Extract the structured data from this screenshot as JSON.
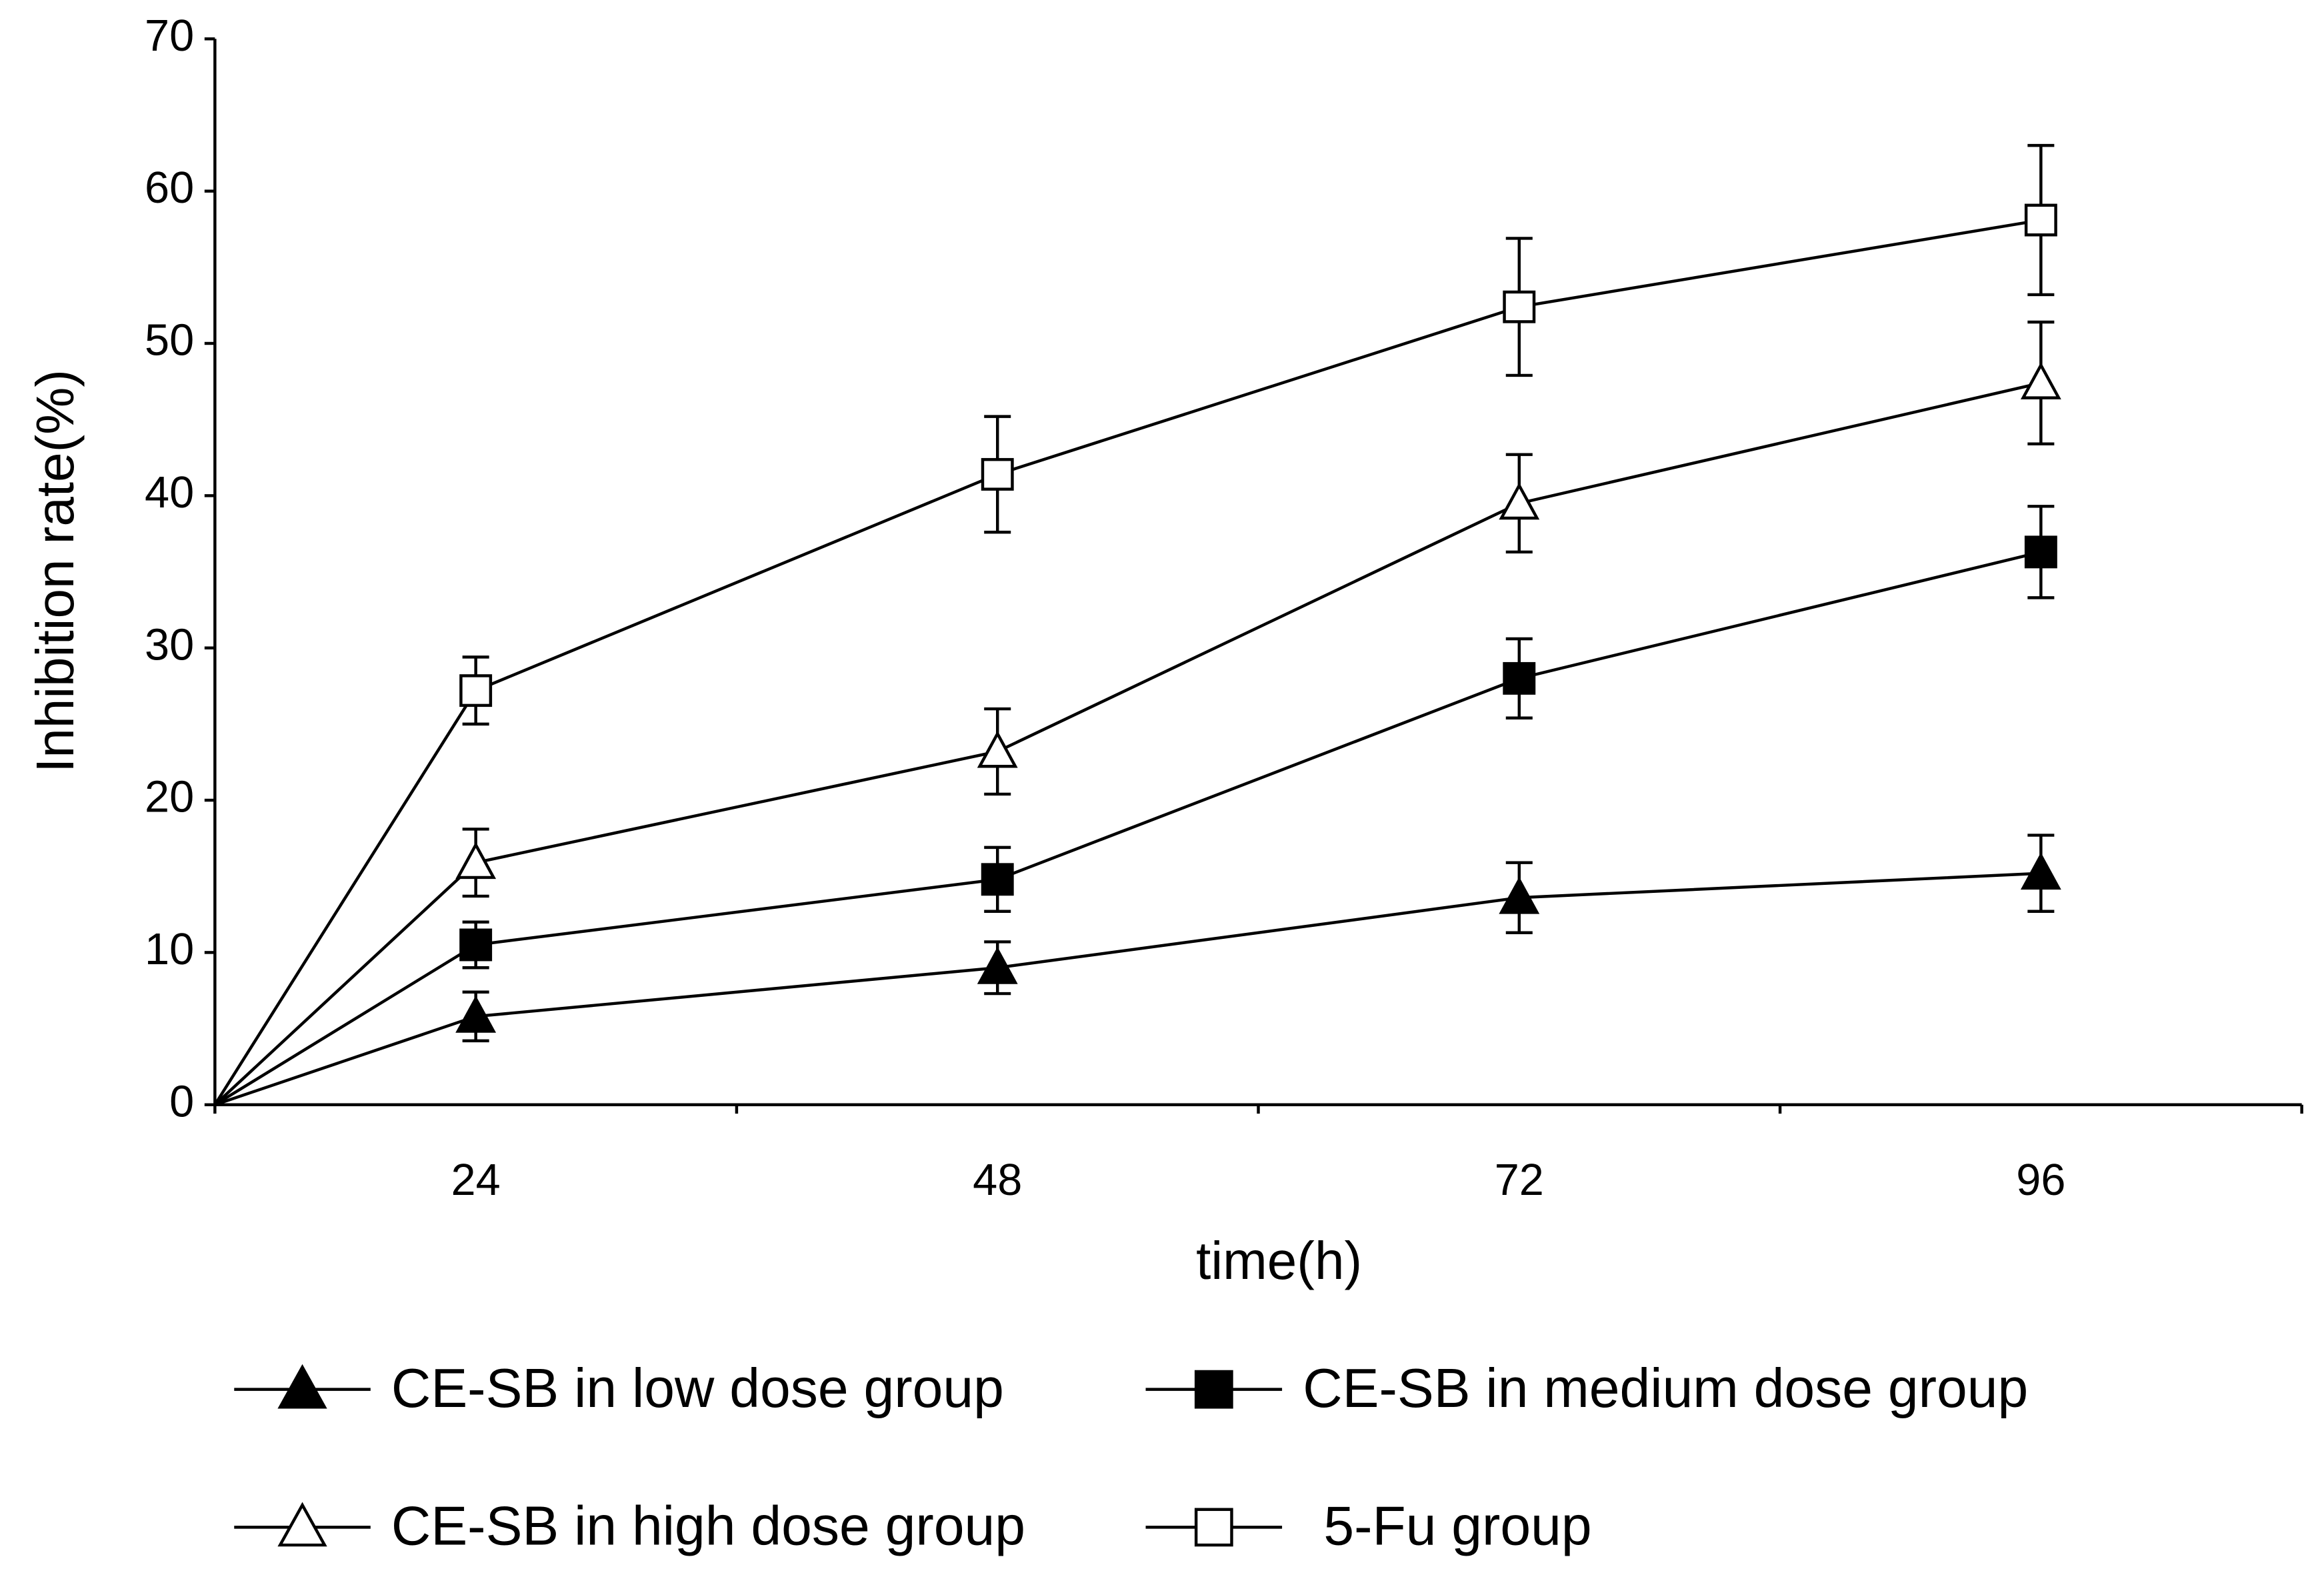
{
  "chart_data": {
    "type": "line",
    "x_label": "time(h)",
    "y_label": "Inhibition rate(%)",
    "categories": [
      null,
      "24",
      "48",
      "72",
      "96"
    ],
    "series": [
      {
        "name": "CE-SB in low dose group",
        "color": "#000000",
        "marker": "triangle",
        "marker_fill": "#000000",
        "values": [
          0,
          5.8,
          9.0,
          13.6,
          15.2
        ],
        "errors": [
          null,
          1.6,
          1.7,
          2.3,
          2.5
        ]
      },
      {
        "name": "CE-SB in medium dose group",
        "color": "#000000",
        "marker": "square",
        "marker_fill": "#000000",
        "values": [
          0,
          10.5,
          14.8,
          28.0,
          36.3
        ],
        "errors": [
          null,
          1.5,
          2.1,
          2.6,
          3.0
        ]
      },
      {
        "name": "CE-SB in high dose group",
        "color": "#000000",
        "marker": "triangle",
        "marker_fill": "#ffffff",
        "values": [
          0,
          15.9,
          23.2,
          39.5,
          47.4
        ],
        "errors": [
          null,
          2.2,
          2.8,
          3.2,
          4.0
        ]
      },
      {
        "name": "5-Fu group",
        "color": "#000000",
        "marker": "square",
        "marker_fill": "#ffffff",
        "values": [
          0,
          27.2,
          41.4,
          52.4,
          58.1
        ],
        "errors": [
          null,
          2.2,
          3.8,
          4.5,
          4.9
        ]
      }
    ],
    "ylim": [
      0,
      70
    ],
    "yticks": [
      0,
      10,
      20,
      30,
      40,
      50,
      60,
      70
    ],
    "grid": false,
    "legend": "bottom"
  }
}
